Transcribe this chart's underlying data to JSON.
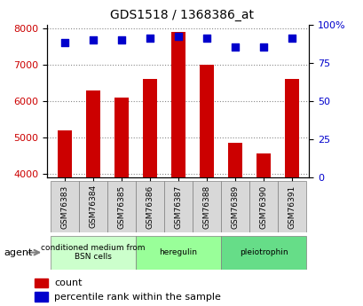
{
  "title": "GDS1518 / 1368386_at",
  "categories": [
    "GSM76383",
    "GSM76384",
    "GSM76385",
    "GSM76386",
    "GSM76387",
    "GSM76388",
    "GSM76389",
    "GSM76390",
    "GSM76391"
  ],
  "counts": [
    5200,
    6300,
    6100,
    6600,
    7900,
    7000,
    4850,
    4550,
    6600
  ],
  "percentiles": [
    88,
    90,
    90,
    91,
    92,
    91,
    85,
    85,
    91
  ],
  "ylim_left": [
    3900,
    8100
  ],
  "ylim_right": [
    0,
    100
  ],
  "yticks_left": [
    4000,
    5000,
    6000,
    7000,
    8000
  ],
  "yticks_right": [
    0,
    25,
    50,
    75,
    100
  ],
  "bar_color": "#cc0000",
  "dot_color": "#0000cc",
  "groups": [
    {
      "label": "conditioned medium from\nBSN cells",
      "start": 0,
      "end": 3,
      "color": "#ccffcc"
    },
    {
      "label": "heregulin",
      "start": 3,
      "end": 6,
      "color": "#99ff99"
    },
    {
      "label": "pleiotrophin",
      "start": 6,
      "end": 9,
      "color": "#66dd88"
    }
  ],
  "agent_label": "agent",
  "legend_count_label": "count",
  "legend_percentile_label": "percentile rank within the sample",
  "grid_color": "#888888",
  "background_color": "#e8e8e8",
  "plot_bg": "#ffffff"
}
